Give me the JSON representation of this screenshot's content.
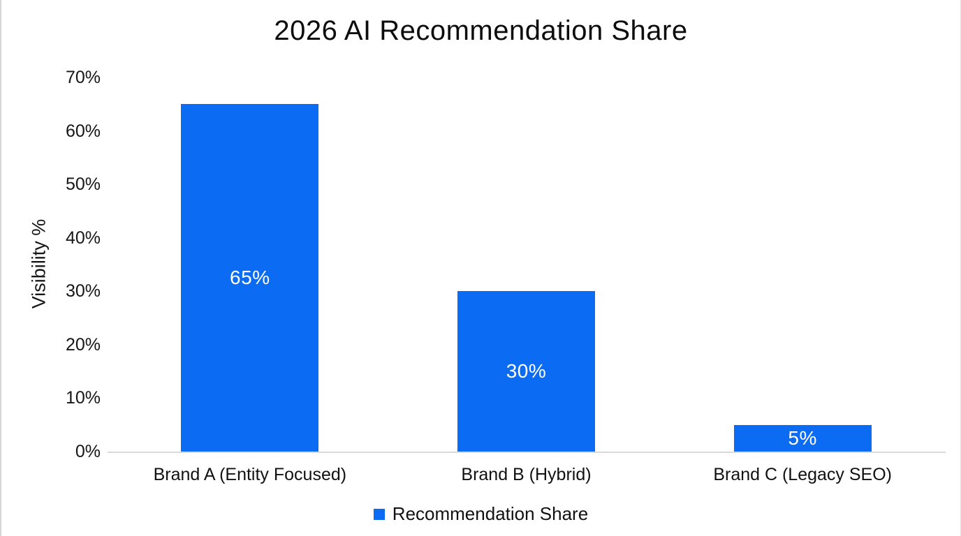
{
  "chart_data": {
    "type": "bar",
    "title": "2026 AI Recommendation Share",
    "ylabel": "Visibility %",
    "xlabel": "",
    "categories": [
      "Brand A (Entity Focused)",
      "Brand B (Hybrid)",
      "Brand C (Legacy SEO)"
    ],
    "series": [
      {
        "name": "Recommendation Share",
        "values": [
          65,
          30,
          5
        ],
        "value_labels": [
          "65%",
          "30%",
          "5%"
        ],
        "color": "#0b6cf3"
      }
    ],
    "ylim": [
      0,
      70
    ],
    "y_tick_step": 10,
    "y_ticks": [
      "0%",
      "10%",
      "20%",
      "30%",
      "40%",
      "50%",
      "60%",
      "70%"
    ],
    "grid": false,
    "legend_position": "bottom",
    "colors": {
      "bar": "#0b6cf3",
      "bar_value_label": "#ffffff",
      "axis_line": "#d9d9d9",
      "text": "#111111",
      "background": "#ffffff"
    }
  }
}
